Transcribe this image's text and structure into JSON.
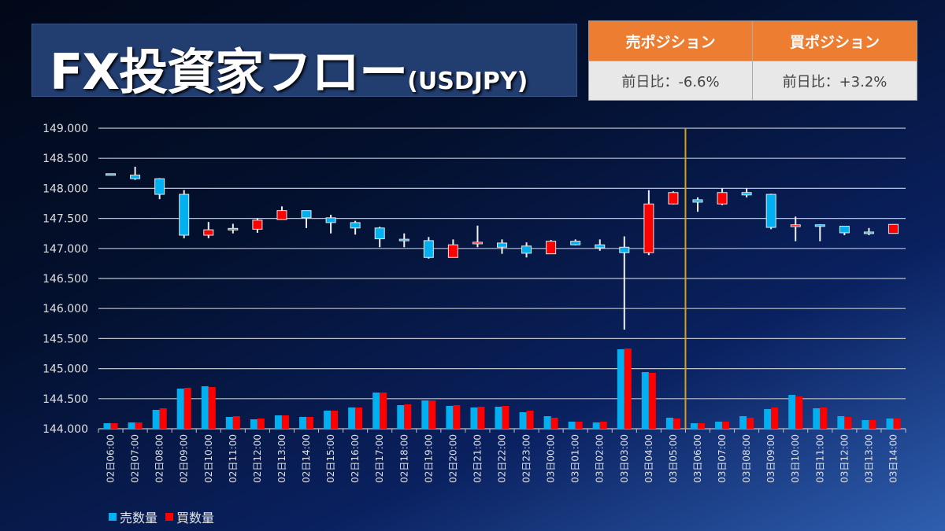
{
  "header": {
    "title": "FX投資家フロー",
    "subtitle": "(USDJPY)"
  },
  "position_table": {
    "columns": [
      {
        "label": "売ポジション",
        "change": "前日比：-6.6%"
      },
      {
        "label": "買ポジション",
        "change": "前日比：+3.2%"
      }
    ],
    "header_color": "#ed7d31"
  },
  "chart_data": {
    "type": "candlestick+bar",
    "ylim": [
      144.0,
      149.0
    ],
    "yticks": [
      "149.000",
      "148.500",
      "148.000",
      "147.500",
      "147.000",
      "146.500",
      "146.000",
      "145.500",
      "145.000",
      "144.500",
      "144.000"
    ],
    "grid": true,
    "legend_position": "bottom-left",
    "colors": {
      "sell": "#00b0f0",
      "buy": "#ff0000",
      "divider": "#d4a017"
    },
    "divider_after": "03日05:00",
    "categories": [
      "02日06:00",
      "02日07:00",
      "02日08:00",
      "02日09:00",
      "02日10:00",
      "02日11:00",
      "02日12:00",
      "02日13:00",
      "02日14:00",
      "02日15:00",
      "02日16:00",
      "02日17:00",
      "02日18:00",
      "02日19:00",
      "02日20:00",
      "02日21:00",
      "02日22:00",
      "02日23:00",
      "03日00:00",
      "03日01:00",
      "03日02:00",
      "03日03:00",
      "03日04:00",
      "03日05:00",
      "03日06:00",
      "03日07:00",
      "03日08:00",
      "03日09:00",
      "03日10:00",
      "03日11:00",
      "03日12:00",
      "03日13:00",
      "03日14:00"
    ],
    "ohlc": [
      [
        148.23,
        148.24,
        148.22,
        148.23
      ],
      [
        148.22,
        148.36,
        148.14,
        148.16
      ],
      [
        148.16,
        148.17,
        147.82,
        147.9
      ],
      [
        147.9,
        147.97,
        147.17,
        147.22
      ],
      [
        147.22,
        147.44,
        147.17,
        147.31
      ],
      [
        147.32,
        147.41,
        147.25,
        147.32
      ],
      [
        147.32,
        147.5,
        147.26,
        147.47
      ],
      [
        147.48,
        147.7,
        147.48,
        147.63
      ],
      [
        147.63,
        147.63,
        147.34,
        147.51
      ],
      [
        147.51,
        147.56,
        147.25,
        147.43
      ],
      [
        147.43,
        147.46,
        147.23,
        147.34
      ],
      [
        147.34,
        147.36,
        147.02,
        147.16
      ],
      [
        147.14,
        147.25,
        147.02,
        147.14
      ],
      [
        147.13,
        147.19,
        146.83,
        146.85
      ],
      [
        146.85,
        147.15,
        146.85,
        147.06
      ],
      [
        147.07,
        147.38,
        147.02,
        147.09
      ],
      [
        147.09,
        147.15,
        146.91,
        147.02
      ],
      [
        147.04,
        147.1,
        146.85,
        146.92
      ],
      [
        146.91,
        147.14,
        146.91,
        147.12
      ],
      [
        147.12,
        147.15,
        147.05,
        147.06
      ],
      [
        147.06,
        147.15,
        146.96,
        147.01
      ],
      [
        147.02,
        147.2,
        145.65,
        146.93
      ],
      [
        146.93,
        147.97,
        146.89,
        147.74
      ],
      [
        147.74,
        147.95,
        147.73,
        147.93
      ],
      [
        147.81,
        147.85,
        147.61,
        147.77
      ],
      [
        147.74,
        148.0,
        147.72,
        147.93
      ],
      [
        147.93,
        148.0,
        147.85,
        147.89
      ],
      [
        147.9,
        147.91,
        147.32,
        147.35
      ],
      [
        147.35,
        147.53,
        147.12,
        147.38
      ],
      [
        147.38,
        147.4,
        147.12,
        147.38
      ],
      [
        147.37,
        147.37,
        147.22,
        147.26
      ],
      [
        147.26,
        147.34,
        147.22,
        147.26
      ],
      [
        147.25,
        147.4,
        147.25,
        147.4
      ]
    ],
    "series": [
      {
        "name": "売数量",
        "values": [
          7,
          8,
          24,
          51,
          54,
          15,
          12,
          17,
          15,
          23,
          27,
          46,
          30,
          36,
          29,
          27,
          28,
          21,
          16,
          9,
          8,
          101,
          72,
          14,
          7,
          9,
          16,
          25,
          43,
          26,
          16,
          11,
          13
        ]
      },
      {
        "name": "買数量",
        "values": [
          7,
          8,
          26,
          52,
          53,
          16,
          13,
          17,
          15,
          23,
          27,
          46,
          31,
          36,
          30,
          28,
          29,
          23,
          14,
          9,
          9,
          102,
          71,
          13,
          7,
          9,
          14,
          27,
          41,
          27,
          15,
          11,
          13
        ]
      }
    ]
  }
}
